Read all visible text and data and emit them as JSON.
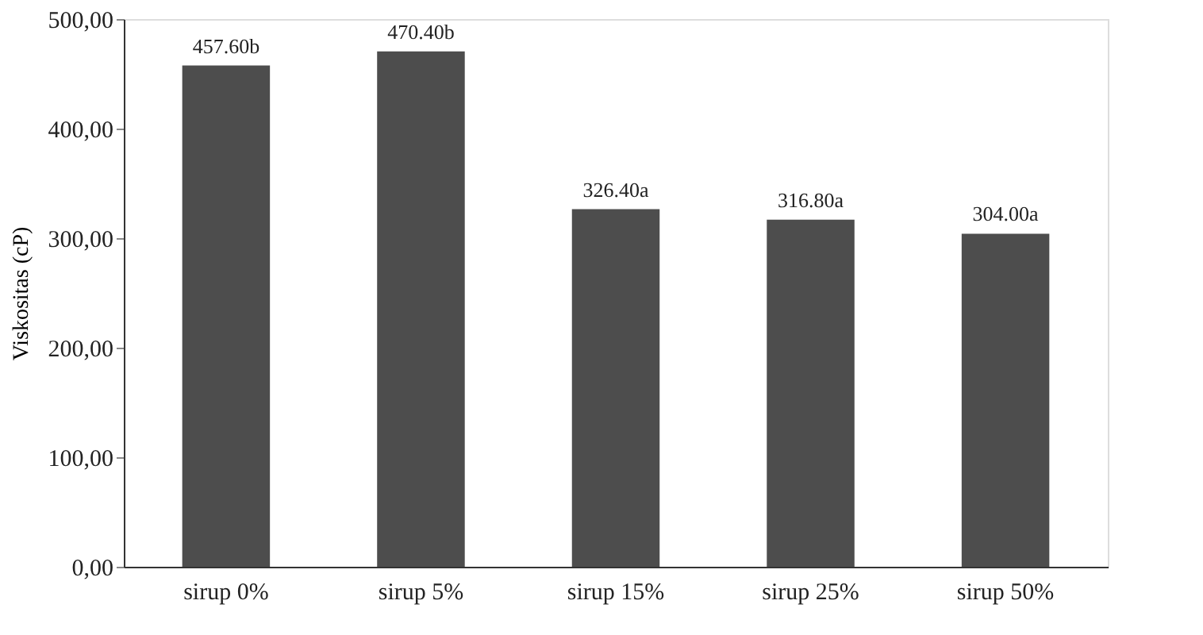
{
  "chart_data": {
    "type": "bar",
    "ylabel": "Viskositas (cP)",
    "categories": [
      "sirup 0%",
      "sirup 5%",
      "sirup 15%",
      "sirup 25%",
      "sirup 50%"
    ],
    "values": [
      457.6,
      470.4,
      326.4,
      316.8,
      304.0
    ],
    "value_labels": [
      "457.60b",
      "470.40b",
      "326.40a",
      "316.80a",
      "304.00a"
    ],
    "color": "#4d4d4d",
    "ylim": [
      0,
      500
    ],
    "yticks": [
      {
        "value": 0,
        "label": "0,00"
      },
      {
        "value": 100,
        "label": "100,00"
      },
      {
        "value": 200,
        "label": "200,00"
      },
      {
        "value": 300,
        "label": "300,00"
      },
      {
        "value": 400,
        "label": "400,00"
      },
      {
        "value": 500,
        "label": "500,00"
      }
    ],
    "grid": false
  }
}
